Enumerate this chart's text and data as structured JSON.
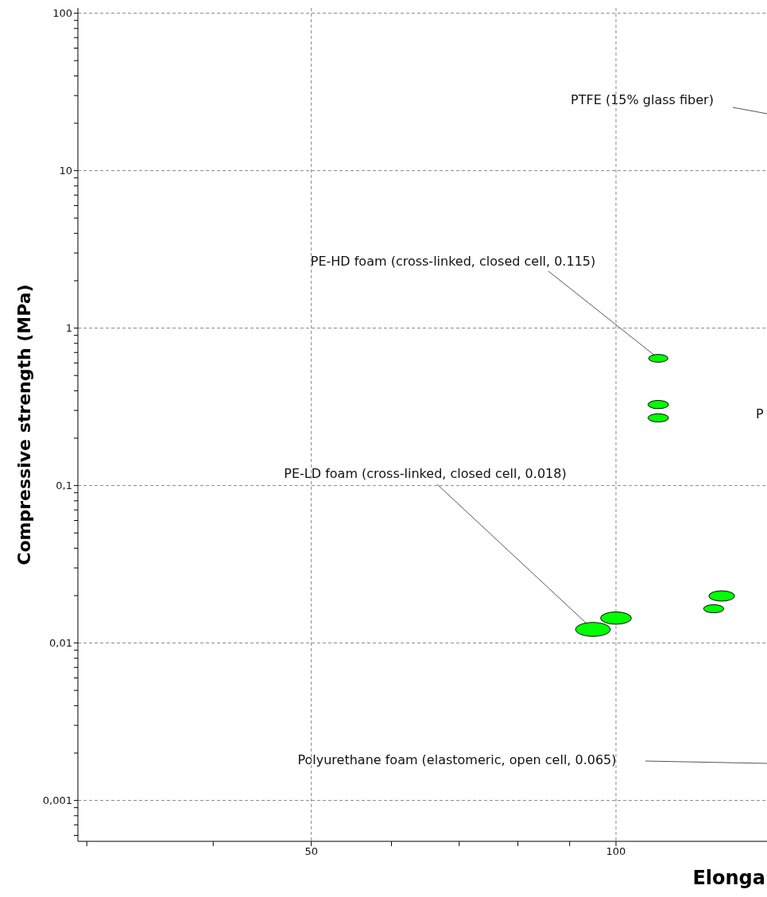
{
  "chart_data": {
    "xlabel": "Elonga",
    "ylabel": "Compressive strength (MPa)",
    "type": "bubble",
    "log": "xy",
    "grid": true,
    "color": "#00ff00",
    "x": [
      110.1,
      110.1,
      110.1,
      94.9,
      100,
      127.2,
      124.9
    ],
    "values": [
      0.643,
      0.327,
      0.269,
      0.0122,
      0.0144,
      0.0199,
      0.0165
    ],
    "sizes": [
      0.31,
      0.35,
      0.35,
      1,
      0.79,
      0.55,
      0.34
    ],
    "xlim": [
      29.4,
      141
    ],
    "xticks": [
      {
        "value": 30,
        "label": null
      },
      {
        "value": 40,
        "label": null
      },
      50,
      {
        "value": 60,
        "label": null
      },
      {
        "value": 70,
        "label": null
      },
      {
        "value": 80,
        "label": null
      },
      {
        "value": 90,
        "label": null
      },
      100
    ],
    "ylim": [
      0.00055,
      108
    ],
    "yticks": [
      {
        "value": 0.0006,
        "label": null
      },
      {
        "value": 0.0007,
        "label": null
      },
      {
        "value": 0.0008,
        "label": null
      },
      {
        "value": 0.0009,
        "label": null
      },
      {
        "value": 0.001,
        "label": "0,001"
      },
      {
        "value": 0.002,
        "label": null
      },
      {
        "value": 0.003,
        "label": null
      },
      {
        "value": 0.004,
        "label": null
      },
      {
        "value": 0.005,
        "label": null
      },
      {
        "value": 0.006,
        "label": null
      },
      {
        "value": 0.007,
        "label": null
      },
      {
        "value": 0.008,
        "label": null
      },
      {
        "value": 0.009,
        "label": null
      },
      {
        "value": 0.01,
        "label": "0,01"
      },
      {
        "value": 0.02,
        "label": null
      },
      {
        "value": 0.03,
        "label": null
      },
      {
        "value": 0.04,
        "label": null
      },
      {
        "value": 0.05,
        "label": null
      },
      {
        "value": 0.06,
        "label": null
      },
      {
        "value": 0.07,
        "label": null
      },
      {
        "value": 0.08,
        "label": null
      },
      {
        "value": 0.09,
        "label": null
      },
      {
        "value": 0.1,
        "label": "0,1"
      },
      {
        "value": 0.2,
        "label": null
      },
      {
        "value": 0.3,
        "label": null
      },
      {
        "value": 0.4,
        "label": null
      },
      {
        "value": 0.5,
        "label": null
      },
      {
        "value": 0.6,
        "label": null
      },
      {
        "value": 0.7,
        "label": null
      },
      {
        "value": 0.8,
        "label": null
      },
      {
        "value": 0.9,
        "label": null
      },
      1,
      {
        "value": 2,
        "label": null
      },
      {
        "value": 3,
        "label": null
      },
      {
        "value": 4,
        "label": null
      },
      {
        "value": 5,
        "label": null
      },
      {
        "value": 6,
        "label": null
      },
      {
        "value": 7,
        "label": null
      },
      {
        "value": 8,
        "label": null
      },
      {
        "value": 9,
        "label": null
      },
      10,
      {
        "value": 20,
        "label": null
      },
      {
        "value": 30,
        "label": null
      },
      {
        "value": 40,
        "label": null
      },
      {
        "value": 50,
        "label": null
      },
      {
        "value": 60,
        "label": null
      },
      {
        "value": 70,
        "label": null
      },
      {
        "value": 80,
        "label": null
      },
      {
        "value": 90,
        "label": null
      },
      100
    ],
    "annotations": [
      {
        "text": "PE-HD foam (cross-linked, closed cell, 0.115)",
        "x": 110.1,
        "y": 0.643
      },
      {
        "text": "PE-LD foam (cross-linked, closed cell, 0.018)",
        "x": 94.9,
        "y": 0.0122
      },
      "PTFE (15% glass fiber)",
      "Polyurethane foam (elastomeric, open cell, 0.065)",
      "P"
    ]
  }
}
